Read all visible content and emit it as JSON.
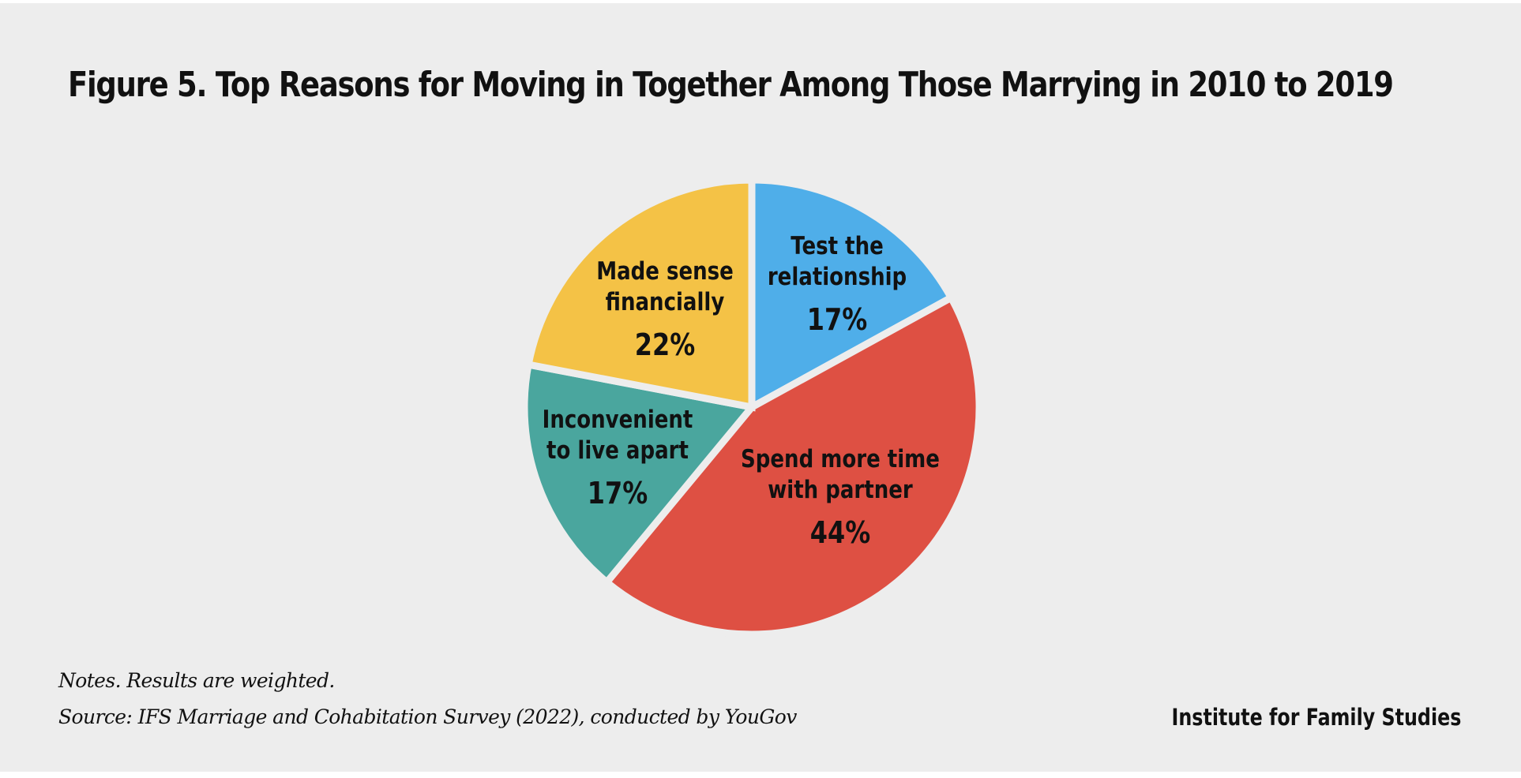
{
  "chart_data": {
    "type": "pie",
    "title": "Figure 5. Top Reasons for Moving in Together Among Those Marrying in 2010 to 2019",
    "slices": [
      {
        "label": [
          "Test the",
          "relationship"
        ],
        "value": 17,
        "value_label": "17%",
        "color": "#4faee9"
      },
      {
        "label": [
          "Spend more time",
          "with partner"
        ],
        "value": 44,
        "value_label": "44%",
        "color": "#de5043"
      },
      {
        "label": [
          "Inconvenient",
          "to live apart"
        ],
        "value": 17,
        "value_label": "17%",
        "color": "#4aa69e"
      },
      {
        "label": [
          "Made sense",
          "financially"
        ],
        "value": 22,
        "value_label": "22%",
        "color": "#f4c246"
      }
    ]
  },
  "footer": {
    "notes": "Notes. Results are weighted.",
    "source": "Source: IFS Marriage and Cohabitation Survey (2022), conducted by YouGov",
    "brand": "Institute for Family Studies"
  }
}
